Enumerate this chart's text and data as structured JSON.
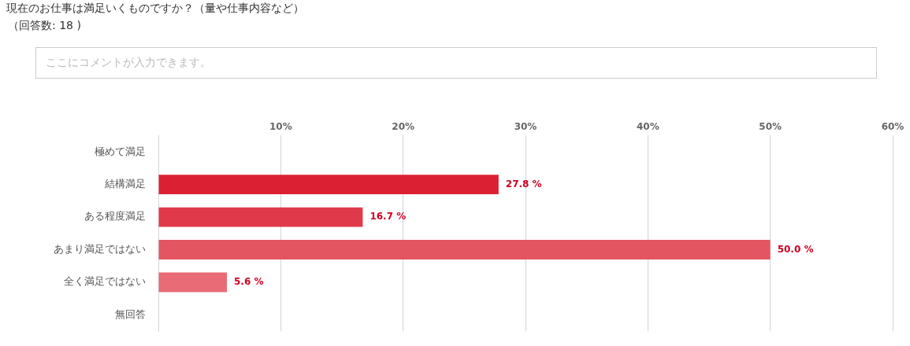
{
  "chart_data": {
    "type": "bar",
    "orientation": "horizontal",
    "title": "現在のお仕事は満足いくものですか？（量や仕事内容など）",
    "subtitle": "（回答数: 18 )",
    "annotations": [
      "ここにコメントが入力できます。"
    ],
    "categories": [
      "極めて満足",
      "結構満足",
      "ある程度満足",
      "あまり満足ではない",
      "全く満足ではない",
      "無回答"
    ],
    "values": [
      0,
      27.8,
      16.7,
      50.0,
      5.6,
      0
    ],
    "colors": [
      "#dc2033",
      "#dc2033",
      "#e03a4a",
      "#e35560",
      "#e86b75",
      "#e86b75"
    ],
    "value_labels": [
      null,
      "27.8 %",
      "16.7 %",
      "50.0 %",
      "5.6 %",
      null
    ],
    "xlim": [
      0,
      60
    ],
    "xticks": [
      {
        "value": 0,
        "label": null
      },
      {
        "value": 10,
        "label": "10%"
      },
      {
        "value": 20,
        "label": "20%"
      },
      {
        "value": 30,
        "label": "30%"
      },
      {
        "value": 40,
        "label": "40%"
      },
      {
        "value": 50,
        "label": "50%"
      },
      {
        "value": 60,
        "label": "60%"
      }
    ],
    "grid": "x",
    "legend": false
  }
}
